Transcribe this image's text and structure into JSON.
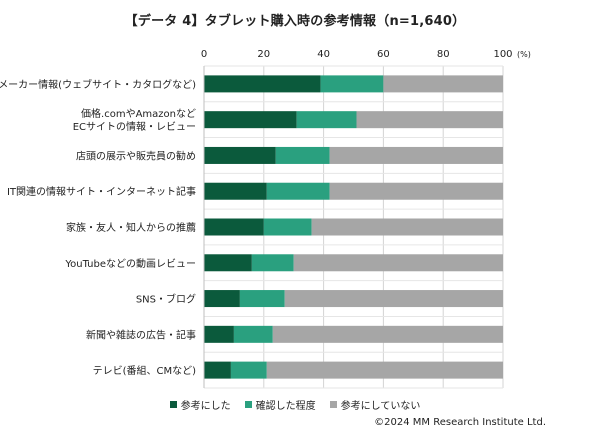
{
  "chart_data": {
    "type": "bar",
    "orientation": "horizontal",
    "stacked": true,
    "title": "【データ 4】タブレット購入時の参考情報（n=1,640）",
    "unit_label": "(%)",
    "xlim": [
      0,
      100
    ],
    "x_ticks": [
      "0",
      "20",
      "40",
      "60",
      "80",
      "100"
    ],
    "grid": true,
    "legend_position": "bottom",
    "categories": [
      [
        "メーカー情報(ウェブサイト・カタログなど)"
      ],
      [
        "価格.comやAmazonなど",
        "ECサイトの情報・レビュー"
      ],
      [
        "店頭の展示や販売員の勧め"
      ],
      [
        "IT関連の情報サイト・インターネット記事"
      ],
      [
        "家族・友人・知人からの推薦"
      ],
      [
        "YouTubeなどの動画レビュー"
      ],
      [
        "SNS・ブログ"
      ],
      [
        "新聞や雑誌の広告・記事"
      ],
      [
        "テレビ(番組、CMなど)"
      ]
    ],
    "series": [
      {
        "name": "参考にした",
        "color": "#0b5a3c",
        "values": [
          39,
          31,
          24,
          21,
          20,
          16,
          12,
          10,
          9
        ]
      },
      {
        "name": "確認した程度",
        "color": "#2aa07f",
        "values": [
          21,
          20,
          18,
          21,
          16,
          14,
          15,
          13,
          12
        ]
      },
      {
        "name": "参考にしていない",
        "color": "#a6a6a6",
        "values": [
          40,
          49,
          58,
          58,
          64,
          70,
          73,
          77,
          79
        ]
      }
    ]
  },
  "footer": {
    "credit": "©2024  MM Research Institute Ltd."
  }
}
